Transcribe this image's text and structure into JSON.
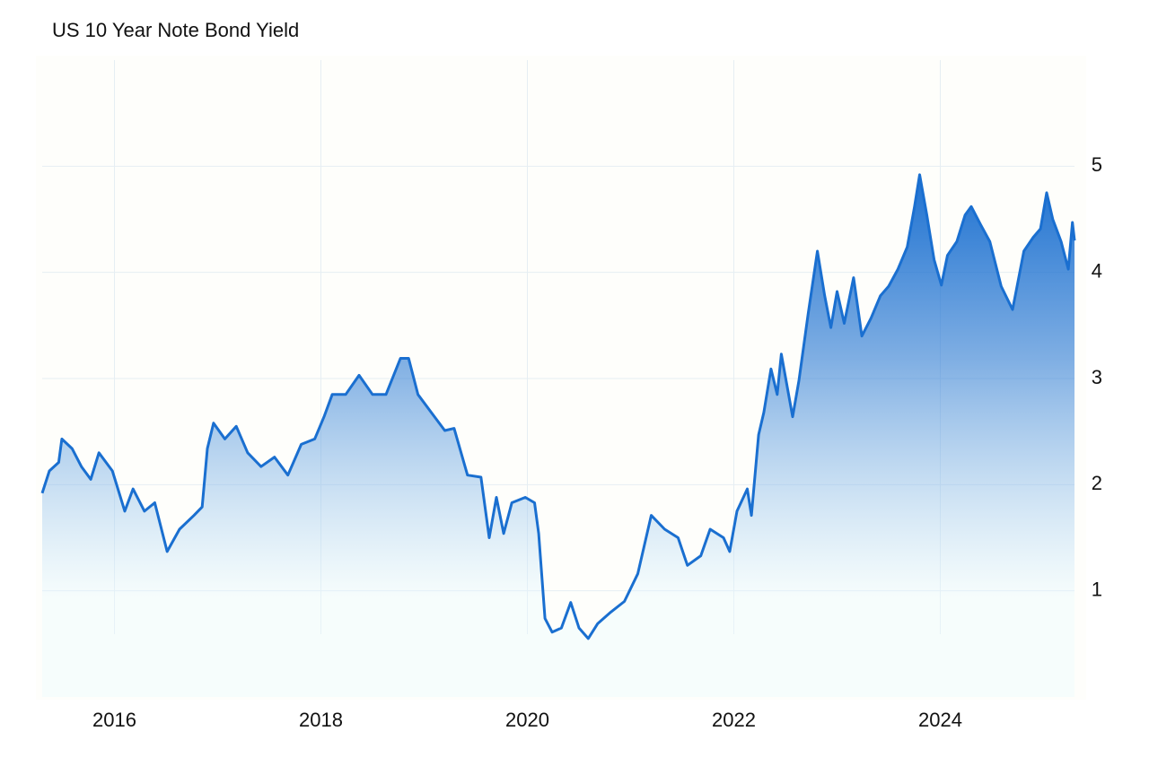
{
  "chart_data": {
    "type": "area",
    "title": "US 10 Year Note Bond Yield",
    "color": "#1a6fd0",
    "grid": true,
    "y_axis_side": "right",
    "xlim": [
      2015.3,
      2025.3
    ],
    "xticks": [
      2016,
      2018,
      2020,
      2022,
      2024
    ],
    "ylim": [
      0,
      6
    ],
    "yticks": [
      1,
      2,
      3,
      4,
      5
    ],
    "x": [
      2015.3,
      2015.37,
      2015.46,
      2015.49,
      2015.59,
      2015.68,
      2015.77,
      2015.85,
      2015.98,
      2016.1,
      2016.18,
      2016.29,
      2016.39,
      2016.51,
      2016.63,
      2016.77,
      2016.85,
      2016.9,
      2016.96,
      2017.07,
      2017.18,
      2017.29,
      2017.42,
      2017.55,
      2017.68,
      2017.81,
      2017.94,
      2018.03,
      2018.11,
      2018.24,
      2018.37,
      2018.5,
      2018.63,
      2018.77,
      2018.85,
      2018.94,
      2019.07,
      2019.2,
      2019.29,
      2019.42,
      2019.55,
      2019.63,
      2019.7,
      2019.77,
      2019.85,
      2019.98,
      2020.07,
      2020.11,
      2020.17,
      2020.24,
      2020.33,
      2020.42,
      2020.5,
      2020.59,
      2020.68,
      2020.81,
      2020.94,
      2021.07,
      2021.2,
      2021.33,
      2021.46,
      2021.55,
      2021.68,
      2021.77,
      2021.9,
      2021.96,
      2022.03,
      2022.13,
      2022.17,
      2022.24,
      2022.29,
      2022.36,
      2022.42,
      2022.46,
      2022.57,
      2022.63,
      2022.72,
      2022.81,
      2022.88,
      2022.94,
      2023.0,
      2023.07,
      2023.16,
      2023.24,
      2023.33,
      2023.42,
      2023.5,
      2023.59,
      2023.68,
      2023.75,
      2023.8,
      2023.87,
      2023.94,
      2024.01,
      2024.07,
      2024.16,
      2024.24,
      2024.3,
      2024.39,
      2024.48,
      2024.59,
      2024.7,
      2024.81,
      2024.9,
      2024.97,
      2025.03,
      2025.09,
      2025.17,
      2025.24,
      2025.28,
      2025.3
    ],
    "values": [
      1.92,
      2.13,
      2.21,
      2.43,
      2.34,
      2.17,
      2.05,
      2.3,
      2.13,
      1.75,
      1.96,
      1.75,
      1.83,
      1.37,
      1.58,
      1.71,
      1.79,
      2.34,
      2.58,
      2.43,
      2.55,
      2.3,
      2.17,
      2.26,
      2.09,
      2.38,
      2.43,
      2.64,
      2.85,
      2.85,
      3.03,
      2.85,
      2.85,
      3.19,
      3.19,
      2.85,
      2.68,
      2.51,
      2.53,
      2.09,
      2.07,
      1.5,
      1.88,
      1.54,
      1.83,
      1.88,
      1.83,
      1.54,
      0.74,
      0.61,
      0.65,
      0.89,
      0.65,
      0.55,
      0.69,
      0.8,
      0.9,
      1.16,
      1.71,
      1.58,
      1.5,
      1.24,
      1.33,
      1.58,
      1.5,
      1.37,
      1.75,
      1.96,
      1.71,
      2.47,
      2.68,
      3.09,
      2.85,
      3.23,
      2.64,
      2.98,
      3.61,
      4.2,
      3.78,
      3.48,
      3.82,
      3.52,
      3.95,
      3.4,
      3.57,
      3.78,
      3.87,
      4.03,
      4.24,
      4.62,
      4.92,
      4.54,
      4.12,
      3.88,
      4.16,
      4.29,
      4.54,
      4.62,
      4.45,
      4.29,
      3.87,
      3.65,
      4.2,
      4.33,
      4.41,
      4.75,
      4.5,
      4.29,
      4.03,
      4.47,
      4.3
    ]
  }
}
